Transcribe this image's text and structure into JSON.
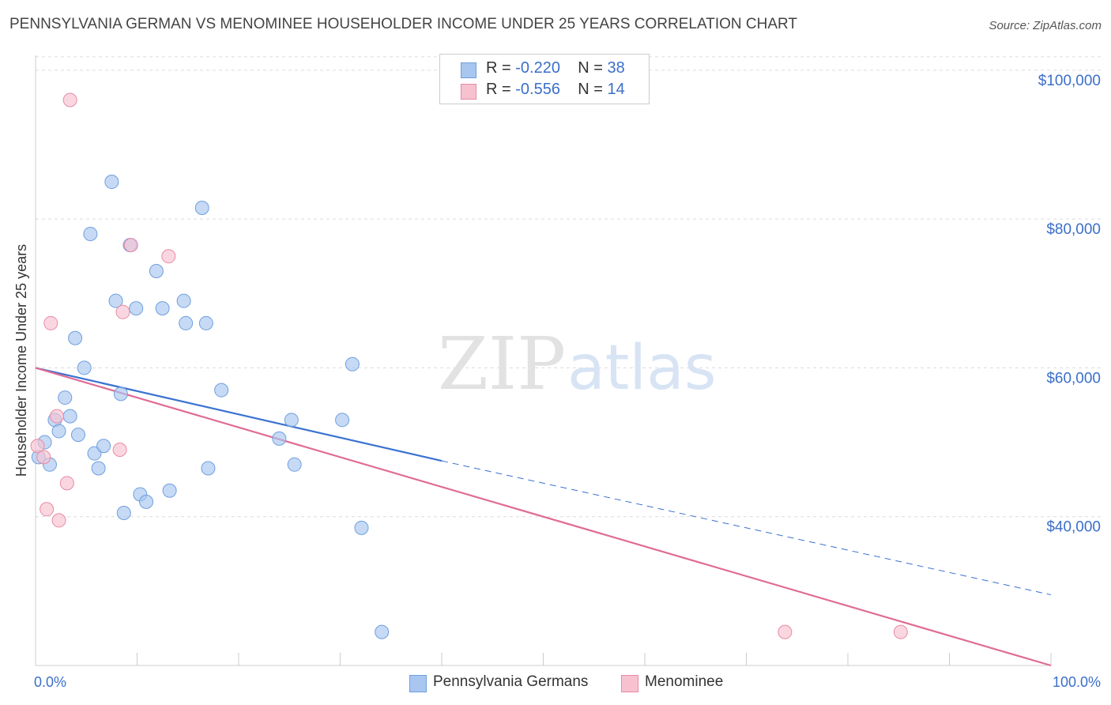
{
  "title": "PENNSYLVANIA GERMAN VS MENOMINEE HOUSEHOLDER INCOME UNDER 25 YEARS CORRELATION CHART",
  "source": "Source: ZipAtlas.com",
  "watermark": {
    "zip": "ZIP",
    "atlas": "atlas"
  },
  "stats": [
    {
      "r_label": "R = ",
      "r_value": "-0.220",
      "n_label": "N = ",
      "n_value": "38",
      "color": "#a8c6ef",
      "border": "#6f9fde"
    },
    {
      "r_label": "R = ",
      "r_value": "-0.556",
      "n_label": "N = ",
      "n_value": "14",
      "color": "#f7c1d0",
      "border": "#e88aa5"
    }
  ],
  "legend": [
    {
      "label": "Pennsylvania Germans",
      "color": "#a8c6ef",
      "border": "#6f9fde"
    },
    {
      "label": "Menominee",
      "color": "#f7c1d0",
      "border": "#e88aa5"
    }
  ],
  "chart_data": {
    "type": "scatter",
    "title": "PENNSYLVANIA GERMAN VS MENOMINEE HOUSEHOLDER INCOME UNDER 25 YEARS CORRELATION CHART",
    "xlabel": "",
    "ylabel": "Householder Income Under 25 years",
    "xlim": [
      0,
      100
    ],
    "ylim": [
      20000,
      102000
    ],
    "x_tick_labels": [
      "0.0%",
      "100.0%"
    ],
    "y_ticks": [
      40000,
      60000,
      80000,
      100000
    ],
    "y_tick_labels": [
      "$40,000",
      "$60,000",
      "$80,000",
      "$100,000"
    ],
    "grid": true,
    "legend_position": "bottom",
    "series": [
      {
        "name": "Pennsylvania Germans",
        "color": "#a8c6ef",
        "stroke": "#6f9fde",
        "points": [
          {
            "x": 0.3,
            "y": 48000
          },
          {
            "x": 0.9,
            "y": 50000
          },
          {
            "x": 1.4,
            "y": 47000
          },
          {
            "x": 1.9,
            "y": 53000
          },
          {
            "x": 2.3,
            "y": 51500
          },
          {
            "x": 2.9,
            "y": 56000
          },
          {
            "x": 3.4,
            "y": 53500
          },
          {
            "x": 3.9,
            "y": 64000
          },
          {
            "x": 4.2,
            "y": 51000
          },
          {
            "x": 4.8,
            "y": 60000
          },
          {
            "x": 5.4,
            "y": 78000
          },
          {
            "x": 5.8,
            "y": 48500
          },
          {
            "x": 6.2,
            "y": 46500
          },
          {
            "x": 6.7,
            "y": 49500
          },
          {
            "x": 7.5,
            "y": 85000
          },
          {
            "x": 7.9,
            "y": 69000
          },
          {
            "x": 8.4,
            "y": 56500
          },
          {
            "x": 8.7,
            "y": 40500
          },
          {
            "x": 9.3,
            "y": 76500
          },
          {
            "x": 9.9,
            "y": 68000
          },
          {
            "x": 10.3,
            "y": 43000
          },
          {
            "x": 10.9,
            "y": 42000
          },
          {
            "x": 11.9,
            "y": 73000
          },
          {
            "x": 12.5,
            "y": 68000
          },
          {
            "x": 13.2,
            "y": 43500
          },
          {
            "x": 14.6,
            "y": 69000
          },
          {
            "x": 14.8,
            "y": 66000
          },
          {
            "x": 16.4,
            "y": 81500
          },
          {
            "x": 16.8,
            "y": 66000
          },
          {
            "x": 17.0,
            "y": 46500
          },
          {
            "x": 18.3,
            "y": 57000
          },
          {
            "x": 24.0,
            "y": 50500
          },
          {
            "x": 25.2,
            "y": 53000
          },
          {
            "x": 25.5,
            "y": 47000
          },
          {
            "x": 30.2,
            "y": 53000
          },
          {
            "x": 31.2,
            "y": 60500
          },
          {
            "x": 32.1,
            "y": 38500
          },
          {
            "x": 34.1,
            "y": 24500
          }
        ]
      },
      {
        "name": "Menominee",
        "color": "#f7c1d0",
        "stroke": "#e88aa5",
        "points": [
          {
            "x": 0.2,
            "y": 49500
          },
          {
            "x": 0.8,
            "y": 48000
          },
          {
            "x": 1.1,
            "y": 41000
          },
          {
            "x": 1.5,
            "y": 66000
          },
          {
            "x": 2.1,
            "y": 53500
          },
          {
            "x": 2.3,
            "y": 39500
          },
          {
            "x": 3.1,
            "y": 44500
          },
          {
            "x": 3.4,
            "y": 96000
          },
          {
            "x": 8.3,
            "y": 49000
          },
          {
            "x": 8.6,
            "y": 67500
          },
          {
            "x": 9.4,
            "y": 76500
          },
          {
            "x": 13.1,
            "y": 75000
          },
          {
            "x": 73.8,
            "y": 24500
          },
          {
            "x": 85.2,
            "y": 24500
          }
        ]
      }
    ],
    "trendlines": [
      {
        "series": "Pennsylvania Germans",
        "color": "#3a72d0",
        "solid": [
          [
            0,
            60000
          ],
          [
            40,
            47500
          ]
        ],
        "dashed": [
          [
            40,
            47500
          ],
          [
            100,
            29500
          ]
        ]
      },
      {
        "series": "Menominee",
        "color": "#e06c95",
        "solid": [
          [
            0,
            60000
          ],
          [
            100,
            20000
          ]
        ]
      }
    ]
  }
}
